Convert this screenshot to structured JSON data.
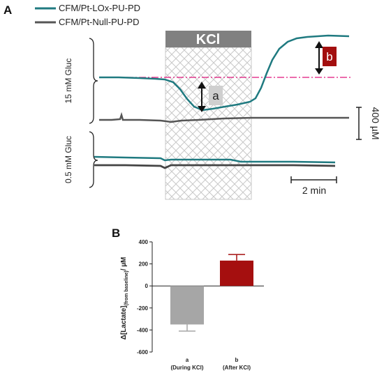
{
  "panel_a": {
    "letter": "A",
    "legend": [
      {
        "name": "CFM/Pt-LOx-PU-PD",
        "color": "#1f7a80"
      },
      {
        "name": "CFM/Pt-Null-PU-PD",
        "color": "#555555"
      }
    ],
    "stimulus_label": "KCl",
    "annotation_a": "a",
    "annotation_b": "b",
    "group_label_15": "15 mM Gluc",
    "group_label_05": "0.5 mM Gluc",
    "scale_bar_y": "400 µM",
    "scale_bar_x": "2 min",
    "colors": {
      "lox": "#1f7a80",
      "null": "#555555",
      "baseline": "#e0147a",
      "kcl_header": "#808080",
      "annotation_b": "#a30f0f",
      "annotation_a_bg": "#cfcfcf"
    }
  },
  "panel_b": {
    "letter": "B"
  },
  "chart_data": {
    "type": "bar",
    "categories": [
      "a",
      "b"
    ],
    "category_sublabels": [
      "(During KCl)",
      "(After KCl)"
    ],
    "values": [
      -350,
      230
    ],
    "error": [
      60,
      55
    ],
    "bar_colors": [
      "#a6a6a6",
      "#a50f0f"
    ],
    "ylabel_main": "Δ[Lactate]",
    "ylabel_sub": "(from baseline)",
    "ylabel_unit": "/ µM",
    "ylim": [
      -600,
      400
    ],
    "yticks": [
      400,
      200,
      0,
      -200,
      -400,
      -600
    ]
  }
}
